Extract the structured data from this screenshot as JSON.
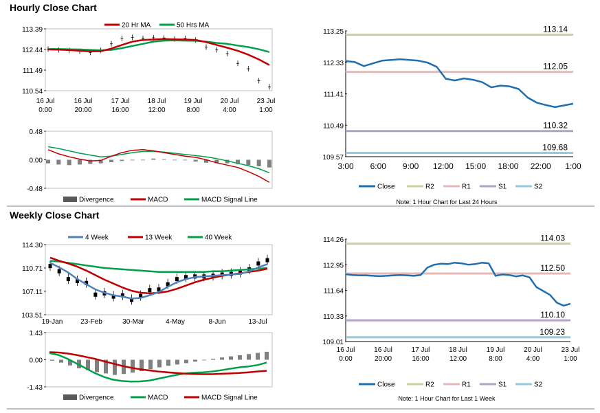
{
  "sections": {
    "hourly_title": "Hourly Close Chart",
    "weekly_title": "Weekly Close Chart"
  },
  "colors": {
    "ma20": "#c00000",
    "ma50": "#00a04a",
    "ma4": "#4f81bd",
    "close": "#1f6fb0",
    "r2": "#c3d69b",
    "r1": "#e6b9b8",
    "s1": "#b3a2c7",
    "s2": "#93cddd",
    "bars": "#808080"
  },
  "chart_data": [
    {
      "id": "hourly_price",
      "type": "line",
      "title": "Hourly Close Chart",
      "legend": [
        "20 Hr MA",
        "50 Hrs MA"
      ],
      "yticks": [
        "113.39",
        "112.44",
        "111.49",
        "110.54"
      ],
      "ylim": [
        110.54,
        113.39
      ],
      "xticks": [
        [
          "16 Jul",
          "0:00"
        ],
        [
          "16 Jul",
          "20:00"
        ],
        [
          "17 Jul",
          "16:00"
        ],
        [
          "18 Jul",
          "12:00"
        ],
        [
          "19 Jul",
          "8:00"
        ],
        [
          "20 Jul",
          "4:00"
        ],
        [
          "23 Jul",
          "1:00"
        ]
      ],
      "series": [
        {
          "name": "Close",
          "values": [
            112.46,
            112.42,
            112.4,
            112.36,
            112.3,
            112.4,
            112.7,
            112.95,
            113.0,
            112.95,
            112.98,
            112.97,
            112.92,
            112.95,
            112.88,
            112.55,
            112.42,
            112.25,
            111.8,
            111.55,
            111.0,
            110.72
          ]
        },
        {
          "name": "20 Hr MA",
          "values": [
            112.44,
            112.43,
            112.41,
            112.38,
            112.35,
            112.36,
            112.48,
            112.65,
            112.8,
            112.88,
            112.9,
            112.92,
            112.91,
            112.9,
            112.88,
            112.78,
            112.65,
            112.52,
            112.38,
            112.2,
            111.98,
            111.72
          ]
        },
        {
          "name": "50 Hrs MA",
          "values": [
            112.46,
            112.46,
            112.45,
            112.44,
            112.42,
            112.4,
            112.42,
            112.5,
            112.6,
            112.7,
            112.8,
            112.85,
            112.86,
            112.85,
            112.84,
            112.8,
            112.74,
            112.7,
            112.62,
            112.55,
            112.45,
            112.32
          ]
        }
      ]
    },
    {
      "id": "hourly_macd",
      "type": "bar",
      "legend": [
        "Divergence",
        "MACD",
        "MACD Signal Line"
      ],
      "yticks": [
        "0.48",
        "0.00",
        "-0.48"
      ],
      "ylim": [
        -0.48,
        0.48
      ],
      "series": [
        {
          "name": "Divergence",
          "values": [
            -0.06,
            -0.08,
            -0.09,
            -0.08,
            -0.07,
            -0.06,
            -0.04,
            -0.02,
            -0.01,
            0.0,
            0.02,
            0.01,
            0.0,
            -0.01,
            -0.03,
            -0.05,
            -0.06,
            -0.06,
            -0.07,
            -0.09,
            -0.11,
            -0.13
          ]
        },
        {
          "name": "MACD",
          "values": [
            0.17,
            0.1,
            0.05,
            0.01,
            -0.02,
            -0.01,
            0.06,
            0.12,
            0.16,
            0.17,
            0.15,
            0.12,
            0.09,
            0.06,
            0.04,
            0.0,
            -0.05,
            -0.09,
            -0.13,
            -0.2,
            -0.28,
            -0.38
          ]
        },
        {
          "name": "MACD Signal Line",
          "values": [
            0.22,
            0.19,
            0.15,
            0.11,
            0.08,
            0.05,
            0.06,
            0.09,
            0.12,
            0.14,
            0.14,
            0.13,
            0.11,
            0.09,
            0.07,
            0.05,
            0.02,
            -0.02,
            -0.06,
            -0.1,
            -0.15,
            -0.22
          ]
        }
      ]
    },
    {
      "id": "hourly_levels",
      "type": "line",
      "note": "Note: 1 Hour Chart for Last 24 Hours",
      "legend": [
        "Close",
        "R2",
        "R1",
        "S1",
        "S2"
      ],
      "yticks": [
        "113.25",
        "112.33",
        "111.41",
        "110.49",
        "109.57"
      ],
      "ylim": [
        109.57,
        113.25
      ],
      "xticks": [
        "3:00",
        "6:00",
        "9:00",
        "12:00",
        "15:00",
        "18:00",
        "22:00",
        "1:00"
      ],
      "levels": [
        {
          "name": "R2",
          "value": 113.14,
          "label": "113.14"
        },
        {
          "name": "R1",
          "value": 112.05,
          "label": "112.05"
        },
        {
          "name": "S1",
          "value": 110.32,
          "label": "110.32"
        },
        {
          "name": "S2",
          "value": 109.68,
          "label": "109.68"
        }
      ],
      "series": [
        {
          "name": "Close",
          "values": [
            112.37,
            112.34,
            112.22,
            112.3,
            112.38,
            112.4,
            112.42,
            112.4,
            112.38,
            112.32,
            112.2,
            111.85,
            111.8,
            111.86,
            111.82,
            111.75,
            111.6,
            111.65,
            111.63,
            111.55,
            111.3,
            111.15,
            111.08,
            111.02,
            111.07,
            111.12
          ]
        }
      ]
    },
    {
      "id": "weekly_price",
      "type": "line",
      "title": "Weekly Close Chart",
      "legend": [
        "4 Week",
        "13 Week",
        "40 Week"
      ],
      "yticks": [
        "114.30",
        "110.71",
        "107.11",
        "103.51"
      ],
      "ylim": [
        103.51,
        114.3
      ],
      "xticks": [
        "19-Jan",
        "23-Feb",
        "30-Mar",
        "4-May",
        "8-Jun",
        "13-Jul"
      ],
      "series": [
        {
          "name": "Close",
          "values": [
            111.0,
            110.2,
            109.0,
            108.7,
            108.4,
            106.6,
            106.8,
            106.3,
            106.5,
            105.8,
            106.4,
            107.3,
            107.4,
            108.2,
            109.0,
            109.3,
            109.4,
            109.4,
            109.5,
            109.7,
            109.8,
            110.0,
            110.5,
            111.4,
            111.9
          ]
        },
        {
          "name": "4 Week",
          "values": [
            111.5,
            110.8,
            110.0,
            109.0,
            108.2,
            107.4,
            106.9,
            106.5,
            106.3,
            106.0,
            106.1,
            106.5,
            107.0,
            107.8,
            108.5,
            109.0,
            109.3,
            109.4,
            109.5,
            109.6,
            109.7,
            109.8,
            110.2,
            110.8,
            111.3
          ]
        },
        {
          "name": "13 Week",
          "values": [
            112.3,
            111.8,
            111.4,
            110.9,
            110.3,
            109.6,
            108.9,
            108.3,
            107.7,
            107.2,
            106.9,
            106.8,
            106.9,
            107.1,
            107.5,
            108.0,
            108.5,
            108.9,
            109.2,
            109.5,
            109.7,
            109.9,
            110.1,
            110.3,
            110.6
          ]
        },
        {
          "name": "40 Week",
          "values": [
            111.8,
            111.7,
            111.5,
            111.3,
            111.1,
            110.9,
            110.7,
            110.6,
            110.5,
            110.4,
            110.3,
            110.2,
            110.1,
            110.1,
            110.1,
            110.1,
            110.1,
            110.1,
            110.2,
            110.2,
            110.3,
            110.4,
            110.5,
            110.6,
            110.7
          ]
        }
      ]
    },
    {
      "id": "weekly_macd",
      "type": "bar",
      "legend": [
        "Divergence",
        "MACD",
        "MACD Signal Line"
      ],
      "yticks": [
        "1.43",
        "0.00",
        "-1.43"
      ],
      "ylim": [
        -1.43,
        1.43
      ],
      "series": [
        {
          "name": "Divergence",
          "values": [
            -0.05,
            -0.15,
            -0.3,
            -0.45,
            -0.55,
            -0.65,
            -0.72,
            -0.8,
            -0.75,
            -0.68,
            -0.6,
            -0.5,
            -0.4,
            -0.32,
            -0.25,
            -0.18,
            -0.1,
            -0.02,
            0.05,
            0.12,
            0.18,
            0.24,
            0.3,
            0.36,
            0.42
          ]
        },
        {
          "name": "MACD",
          "values": [
            0.35,
            0.25,
            0.05,
            -0.2,
            -0.45,
            -0.7,
            -0.9,
            -1.05,
            -1.12,
            -1.15,
            -1.14,
            -1.1,
            -1.0,
            -0.9,
            -0.8,
            -0.72,
            -0.68,
            -0.66,
            -0.62,
            -0.55,
            -0.47,
            -0.4,
            -0.35,
            -0.28,
            -0.15
          ]
        },
        {
          "name": "MACD Signal Line",
          "values": [
            0.4,
            0.38,
            0.33,
            0.25,
            0.15,
            0.05,
            -0.08,
            -0.2,
            -0.32,
            -0.42,
            -0.5,
            -0.56,
            -0.62,
            -0.66,
            -0.7,
            -0.73,
            -0.75,
            -0.76,
            -0.76,
            -0.74,
            -0.72,
            -0.7,
            -0.66,
            -0.62,
            -0.58
          ]
        }
      ]
    },
    {
      "id": "weekly_levels",
      "type": "line",
      "note": "Note: 1 Hour Chart for Last 1 Week",
      "legend": [
        "Close",
        "R2",
        "R1",
        "S1",
        "S2"
      ],
      "yticks": [
        "114.26",
        "112.95",
        "111.64",
        "110.33",
        "109.01"
      ],
      "ylim": [
        109.01,
        114.26
      ],
      "xticks": [
        [
          "16 Jul",
          "0:00"
        ],
        [
          "16 Jul",
          "20:00"
        ],
        [
          "17 Jul",
          "16:00"
        ],
        [
          "18 Jul",
          "12:00"
        ],
        [
          "19 Jul",
          "8:00"
        ],
        [
          "20 Jul",
          "4:00"
        ],
        [
          "23 Jul",
          "1:00"
        ]
      ],
      "levels": [
        {
          "name": "R2",
          "value": 114.03,
          "label": "114.03"
        },
        {
          "name": "R1",
          "value": 112.5,
          "label": "112.50"
        },
        {
          "name": "S1",
          "value": 110.1,
          "label": "110.10"
        },
        {
          "name": "S2",
          "value": 109.23,
          "label": "109.23"
        }
      ],
      "series": [
        {
          "name": "Close",
          "values": [
            112.46,
            112.42,
            112.4,
            112.4,
            112.38,
            112.36,
            112.38,
            112.4,
            112.42,
            112.4,
            112.38,
            112.42,
            112.8,
            112.95,
            113.0,
            112.98,
            113.05,
            113.02,
            112.95,
            112.98,
            113.05,
            113.02,
            112.38,
            112.45,
            112.42,
            112.35,
            112.4,
            112.3,
            111.8,
            111.6,
            111.4,
            111.0,
            110.85,
            110.95
          ]
        }
      ]
    }
  ]
}
